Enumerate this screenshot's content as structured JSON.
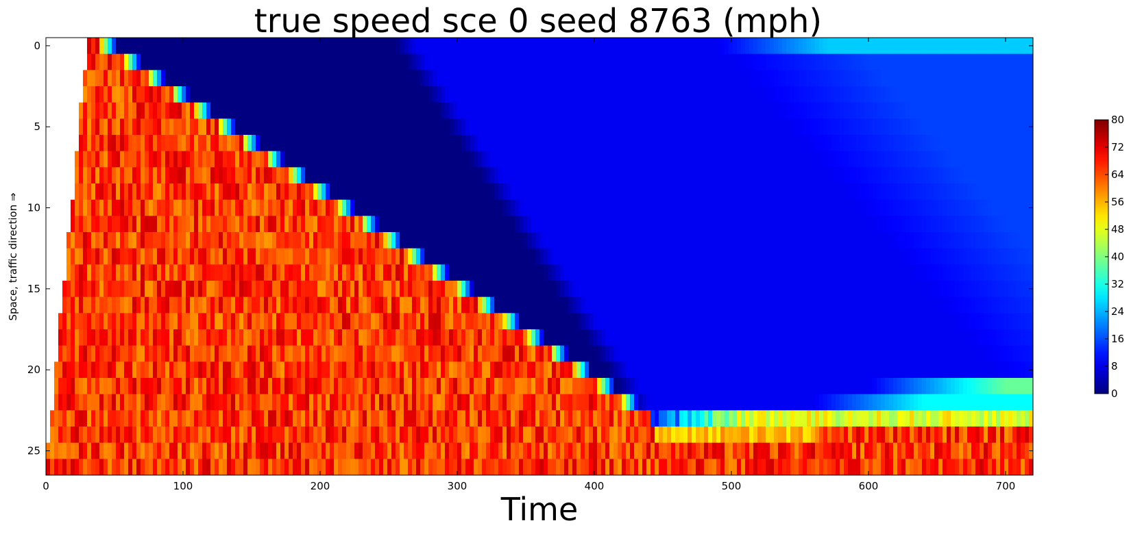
{
  "chart_data": {
    "type": "heatmap",
    "title": "true speed sce 0 seed 8763 (mph)",
    "xlabel": "Time",
    "ylabel": "Space, traffic direction ⇒",
    "xlim": [
      0,
      720
    ],
    "ylim": [
      -0.5,
      26.5
    ],
    "y_inverted": true,
    "x_ticks": [
      0,
      100,
      200,
      300,
      400,
      500,
      600,
      700
    ],
    "y_ticks": [
      0,
      5,
      10,
      15,
      20,
      25
    ],
    "n_rows": 27,
    "colormap": "jet",
    "colorbar": {
      "min": 0,
      "max": 80,
      "ticks": [
        0,
        8,
        16,
        24,
        32,
        40,
        48,
        56,
        64,
        72,
        80
      ]
    },
    "grid": false,
    "legend": "none",
    "regions": {
      "empty_before_vehicles": "white region at upper-left; first vehicles reach row 0 near t=30 and row 26 near t=0",
      "free_flow_speed_mph": [
        58,
        74
      ],
      "jam_front_row0_time": 52,
      "jam_front_row22_time": 432,
      "jam_speed_mph": 0,
      "jam_release_row0_time": 255,
      "jam_release_row22_time": 425,
      "discharge_speed_mph": 9,
      "recovery_row0_start_time": 490,
      "recovery_row0_speed_mph": 26,
      "recovered_rows_speed_mph": 15,
      "row21_recovery_speed_mph": 38,
      "row22_recovery_speed_mph": 30,
      "row23_speed_mph": 48
    }
  }
}
